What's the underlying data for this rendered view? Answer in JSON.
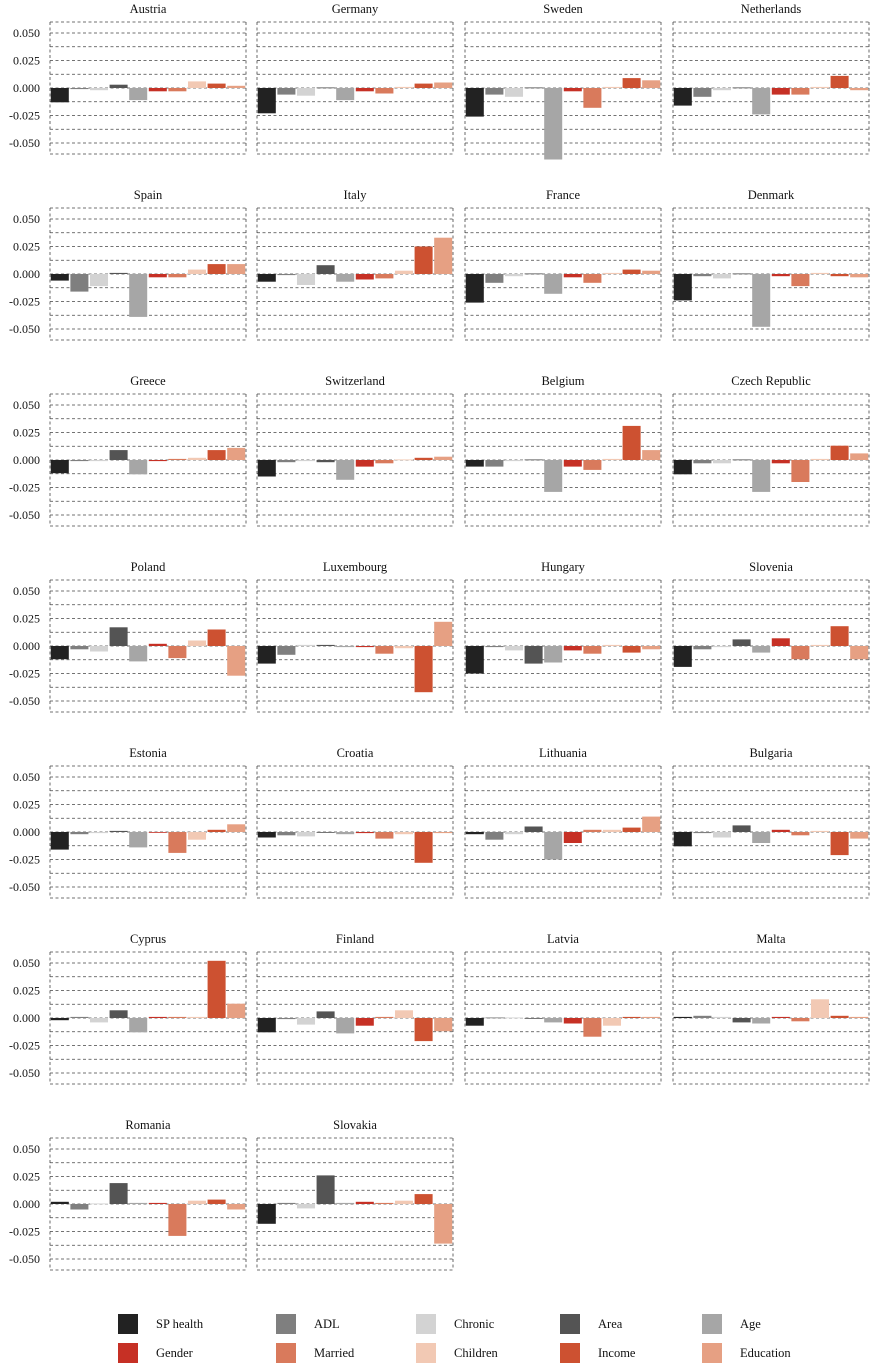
{
  "chart_data": {
    "type": "bar",
    "ylim": [
      -0.06,
      0.06
    ],
    "y_ticks": [
      "0.050",
      "0.025",
      "0.000",
      "-0.025",
      "-0.050"
    ],
    "y_tick_values": [
      0.05,
      0.025,
      0,
      -0.025,
      -0.05
    ],
    "grid": true,
    "legend_position": "bottom",
    "series": [
      {
        "name": "SP health",
        "color": "#222222"
      },
      {
        "name": "ADL",
        "color": "#7f7f7f"
      },
      {
        "name": "Chronic",
        "color": "#d3d3d3"
      },
      {
        "name": "Area",
        "color": "#545454"
      },
      {
        "name": "Age",
        "color": "#a6a6a6"
      },
      {
        "name": "Gender",
        "color": "#c63025"
      },
      {
        "name": "Married",
        "color": "#d97a5c"
      },
      {
        "name": "Children",
        "color": "#f2c9b4"
      },
      {
        "name": "Income",
        "color": "#cd5131"
      },
      {
        "name": "Education",
        "color": "#e6a083"
      }
    ],
    "panels": [
      {
        "title": "Austria",
        "values": [
          -0.013,
          -0.001,
          -0.002,
          0.003,
          -0.011,
          -0.003,
          -0.003,
          0.006,
          0.004,
          0.002
        ]
      },
      {
        "title": "Germany",
        "values": [
          -0.023,
          -0.006,
          -0.007,
          0.0005,
          -0.011,
          -0.003,
          -0.005,
          0.001,
          0.004,
          0.005
        ]
      },
      {
        "title": "Sweden",
        "values": [
          -0.026,
          -0.006,
          -0.008,
          0.0005,
          -0.065,
          -0.003,
          -0.018,
          0.001,
          0.009,
          0.007
        ]
      },
      {
        "title": "Netherlands",
        "values": [
          -0.016,
          -0.008,
          -0.002,
          0.0005,
          -0.024,
          -0.006,
          -0.006,
          0.001,
          0.011,
          -0.002
        ]
      },
      {
        "title": "Spain",
        "values": [
          -0.006,
          -0.016,
          -0.011,
          0.001,
          -0.039,
          -0.003,
          -0.003,
          0.004,
          0.009,
          0.009
        ]
      },
      {
        "title": "Italy",
        "values": [
          -0.007,
          -0.001,
          -0.01,
          0.008,
          -0.007,
          -0.005,
          -0.004,
          0.003,
          0.025,
          0.033
        ]
      },
      {
        "title": "France",
        "values": [
          -0.026,
          -0.008,
          -0.002,
          0.0005,
          -0.018,
          -0.003,
          -0.008,
          0.001,
          0.004,
          0.003
        ]
      },
      {
        "title": "Denmark",
        "values": [
          -0.024,
          -0.002,
          -0.004,
          0.0005,
          -0.048,
          -0.002,
          -0.011,
          0.001,
          -0.002,
          -0.003
        ]
      },
      {
        "title": "Greece",
        "values": [
          -0.012,
          -0.001,
          -0.001,
          0.009,
          -0.013,
          -0.001,
          0.001,
          0.002,
          0.009,
          0.011
        ]
      },
      {
        "title": "Switzerland",
        "values": [
          -0.015,
          -0.002,
          -0.001,
          -0.002,
          -0.018,
          -0.006,
          -0.003,
          0.0005,
          0.002,
          0.003
        ]
      },
      {
        "title": "Belgium",
        "values": [
          -0.006,
          -0.006,
          -0.001,
          0.0005,
          -0.029,
          -0.006,
          -0.009,
          0.001,
          0.031,
          0.009
        ]
      },
      {
        "title": "Czech Republic",
        "values": [
          -0.013,
          -0.003,
          -0.003,
          0.0005,
          -0.029,
          -0.003,
          -0.02,
          0.001,
          0.013,
          0.006
        ]
      },
      {
        "title": "Poland",
        "values": [
          -0.012,
          -0.003,
          -0.005,
          0.017,
          -0.014,
          0.002,
          -0.011,
          0.005,
          0.015,
          -0.027
        ]
      },
      {
        "title": "Luxembourg",
        "values": [
          -0.016,
          -0.008,
          0.001,
          0.001,
          -0.001,
          -0.001,
          -0.007,
          -0.002,
          -0.042,
          0.022
        ]
      },
      {
        "title": "Hungary",
        "values": [
          -0.025,
          -0.001,
          -0.004,
          -0.016,
          -0.015,
          -0.004,
          -0.007,
          0.001,
          -0.006,
          -0.003
        ]
      },
      {
        "title": "Slovenia",
        "values": [
          -0.019,
          -0.003,
          -0.001,
          0.006,
          -0.006,
          0.007,
          -0.012,
          0.001,
          0.018,
          -0.012
        ]
      },
      {
        "title": "Estonia",
        "values": [
          -0.016,
          -0.002,
          -0.001,
          0.001,
          -0.014,
          -0.0005,
          -0.019,
          -0.007,
          0.002,
          0.007
        ]
      },
      {
        "title": "Croatia",
        "values": [
          -0.005,
          -0.003,
          -0.004,
          -0.0005,
          -0.002,
          -0.001,
          -0.006,
          -0.002,
          -0.028,
          -0.001
        ]
      },
      {
        "title": "Lithuania",
        "values": [
          -0.002,
          -0.007,
          -0.002,
          0.005,
          -0.025,
          -0.01,
          0.002,
          0.002,
          0.004,
          0.014
        ]
      },
      {
        "title": "Bulgaria",
        "values": [
          -0.013,
          -0.001,
          -0.005,
          0.006,
          -0.01,
          0.002,
          -0.003,
          0.001,
          -0.021,
          -0.006
        ]
      },
      {
        "title": "Cyprus",
        "values": [
          -0.002,
          0.001,
          -0.004,
          0.007,
          -0.013,
          0.001,
          0.001,
          0.001,
          0.052,
          0.013
        ]
      },
      {
        "title": "Finland",
        "values": [
          -0.013,
          -0.001,
          -0.006,
          0.006,
          -0.014,
          -0.007,
          0.001,
          0.007,
          -0.021,
          -0.012
        ]
      },
      {
        "title": "Latvia",
        "values": [
          -0.007,
          0.0005,
          0.0005,
          -0.0005,
          -0.004,
          -0.005,
          -0.017,
          -0.007,
          0.001,
          0.001
        ]
      },
      {
        "title": "Malta",
        "values": [
          0.001,
          0.002,
          0.001,
          -0.004,
          -0.005,
          0.001,
          -0.003,
          0.017,
          0.002,
          0.001
        ]
      },
      {
        "title": "Romania",
        "values": [
          0.002,
          -0.005,
          0.0005,
          0.019,
          0.001,
          0.001,
          -0.029,
          0.003,
          0.004,
          -0.005
        ]
      },
      {
        "title": "Slovakia",
        "values": [
          -0.018,
          0.001,
          -0.004,
          0.026,
          0.001,
          0.002,
          0.001,
          0.003,
          0.009,
          -0.036
        ]
      }
    ]
  }
}
